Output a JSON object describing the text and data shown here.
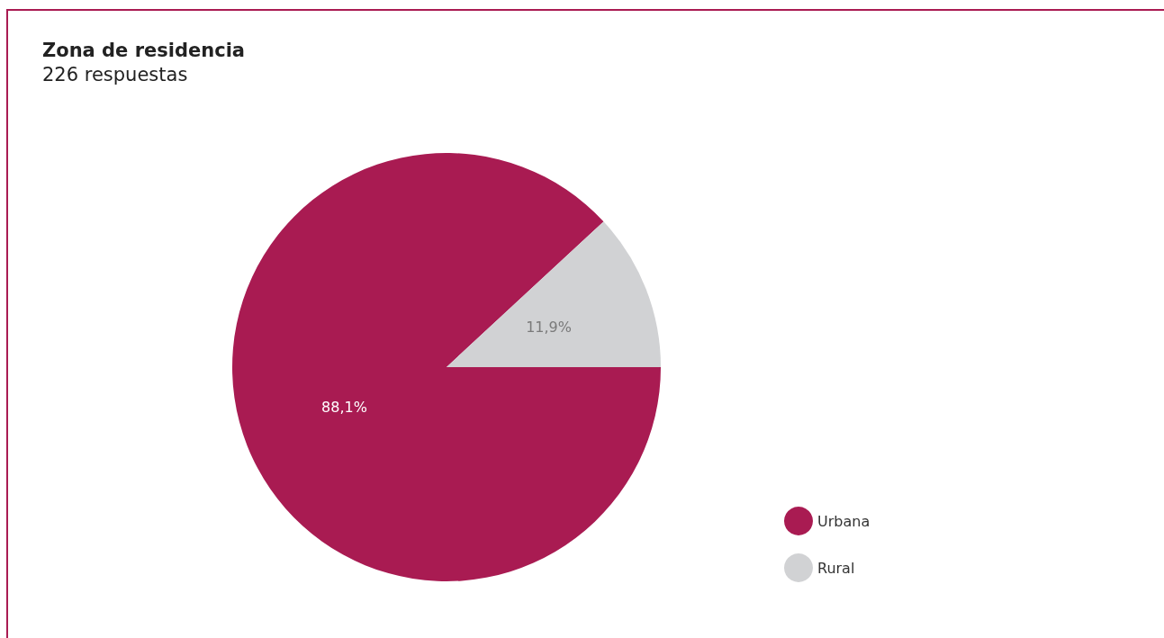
{
  "chart_data": {
    "type": "pie",
    "title": "Zona de residencia",
    "subtitle": "226 respuestas",
    "categories": [
      "Urbana",
      "Rural"
    ],
    "values": [
      88.1,
      11.9
    ],
    "colors": [
      "#a91b52",
      "#d1d2d4"
    ],
    "value_labels": [
      "88,1%",
      "11,9%"
    ],
    "legend": "right"
  }
}
